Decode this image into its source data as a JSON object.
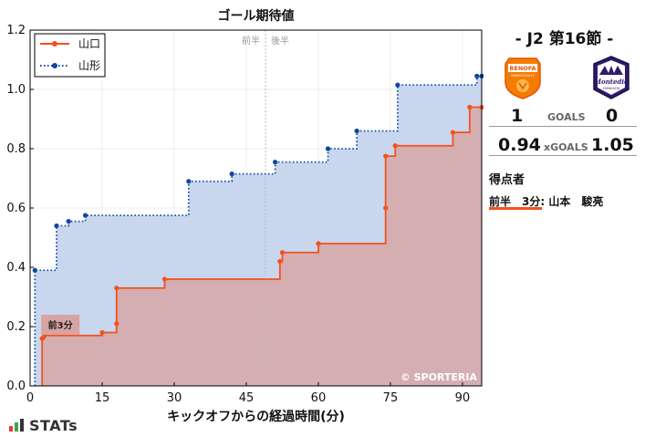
{
  "chart_data": {
    "type": "line",
    "title": "ゴール期待値",
    "xlabel": "キックオフからの経過時間(分)",
    "ylabel": "",
    "xlim": [
      0,
      94
    ],
    "ylim": [
      0,
      1.2
    ],
    "xticks": [
      0,
      15,
      30,
      45,
      60,
      75,
      90
    ],
    "yticks": [
      0.0,
      0.2,
      0.4,
      0.6,
      0.8,
      1.0,
      1.2
    ],
    "legend_position": "top-left",
    "halftime_minute": 49,
    "halftime_labels": [
      "前半",
      "後半"
    ],
    "watermark": "© SPORTERIA",
    "series": [
      {
        "name": "山口",
        "color": "#f4511e",
        "fill": "#d4aeb0",
        "style": "solid",
        "points": [
          [
            2.5,
            0.0
          ],
          [
            2.5,
            0.16
          ],
          [
            3,
            0.17
          ],
          [
            15,
            0.18
          ],
          [
            18,
            0.21
          ],
          [
            18,
            0.33
          ],
          [
            28,
            0.36
          ],
          [
            52,
            0.42
          ],
          [
            52.5,
            0.45
          ],
          [
            60,
            0.48
          ],
          [
            74,
            0.6
          ],
          [
            74,
            0.775
          ],
          [
            76,
            0.81
          ],
          [
            88,
            0.855
          ],
          [
            91.5,
            0.94
          ],
          [
            94,
            0.94
          ]
        ]
      },
      {
        "name": "山形",
        "color": "#0d47a1",
        "fill": "#c8d6ee",
        "style": "dotted",
        "points": [
          [
            1,
            0.0
          ],
          [
            1,
            0.39
          ],
          [
            5.5,
            0.54
          ],
          [
            8,
            0.555
          ],
          [
            11.5,
            0.575
          ],
          [
            33,
            0.69
          ],
          [
            42,
            0.715
          ],
          [
            51,
            0.755
          ],
          [
            62,
            0.8
          ],
          [
            68,
            0.86
          ],
          [
            76.5,
            1.015
          ],
          [
            93,
            1.045
          ],
          [
            94,
            1.045
          ]
        ]
      }
    ],
    "annotations": [
      {
        "text": "前3分",
        "x": 2.5,
        "y": 0.16,
        "series": "山口"
      }
    ]
  },
  "match": {
    "title": "-  J2 第16節  -",
    "home_badge_text": "RENOFA",
    "home_badge_subtext": "YAMAGUCHI FC",
    "away_badge_text": "Montedio",
    "away_badge_subtext": "YAMAGATA",
    "home_goals": "1",
    "away_goals": "0",
    "goals_label": "GOALS",
    "home_xg": "0.94",
    "away_xg": "1.05",
    "xg_label": "xGOALS",
    "scorers_heading": "得点者",
    "scorers": [
      "前半　3分: 山本　駿亮"
    ]
  },
  "brand": {
    "name": "STATs"
  },
  "colors": {
    "home": "#f4511e",
    "away": "#0d47a1"
  }
}
